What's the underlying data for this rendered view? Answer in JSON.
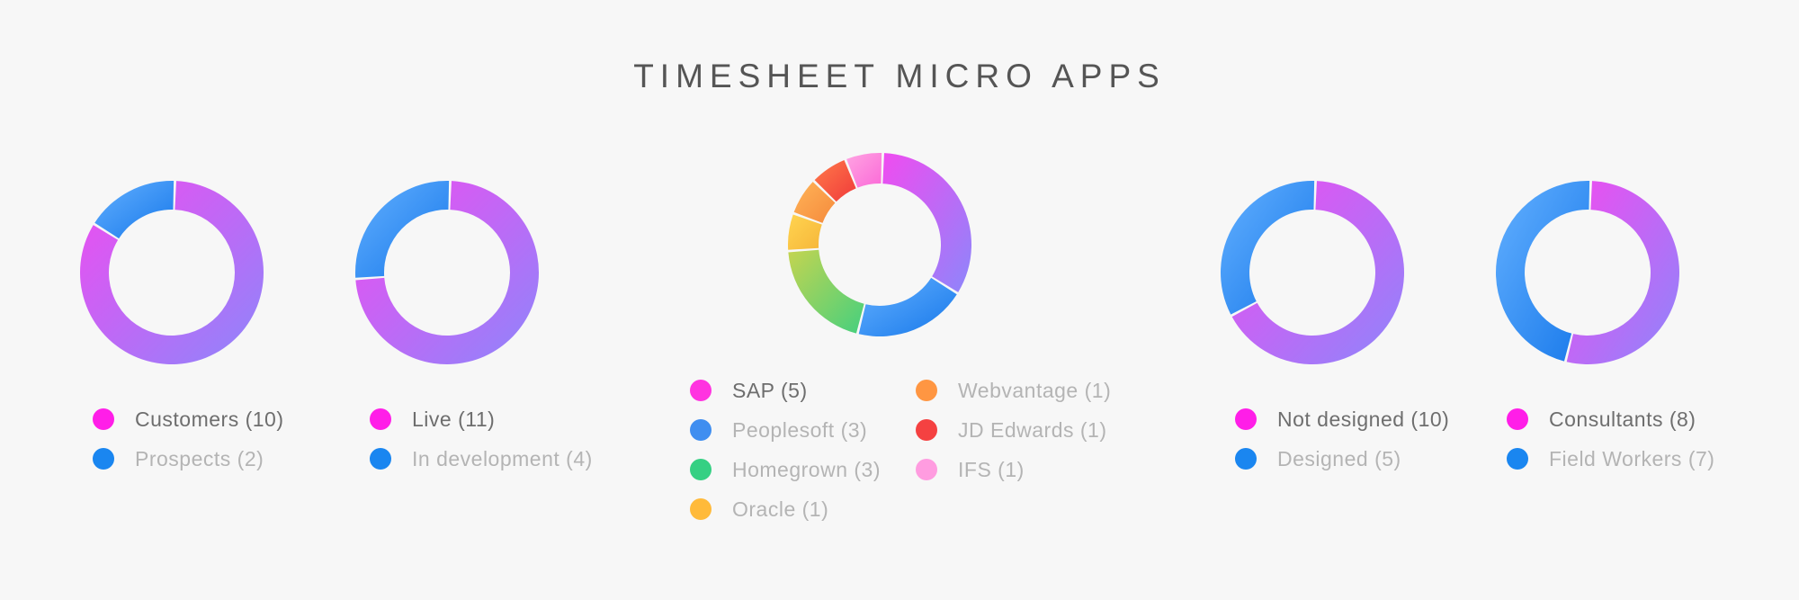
{
  "title": "TIMESHEET MICRO APPS",
  "chart_data": [
    {
      "type": "pie",
      "donut": true,
      "slices": [
        {
          "label": "Customers",
          "value": 10,
          "text": "Customers (10)",
          "dot_color": "#ff1ee8"
        },
        {
          "label": "Prospects",
          "value": 2,
          "text": "Prospects (2)",
          "dot_color": "#1a86f0"
        }
      ]
    },
    {
      "type": "pie",
      "donut": true,
      "slices": [
        {
          "label": "Live",
          "value": 11,
          "text": "Live (11)",
          "dot_color": "#ff1ee8"
        },
        {
          "label": "In development",
          "value": 4,
          "text": "In development (4)",
          "dot_color": "#1a86f0"
        }
      ]
    },
    {
      "type": "pie",
      "donut": true,
      "slices": [
        {
          "label": "SAP",
          "value": 5,
          "text": "SAP (5)",
          "dot_color": "#ff33e0"
        },
        {
          "label": "Peoplesoft",
          "value": 3,
          "text": "Peoplesoft (3)",
          "dot_color": "#3f8ef0"
        },
        {
          "label": "Homegrown",
          "value": 3,
          "text": "Homegrown (3)",
          "dot_color": "#35d083"
        },
        {
          "label": "Oracle",
          "value": 1,
          "text": "Oracle (1)",
          "dot_color": "#ffba3a"
        },
        {
          "label": "Webvantage",
          "value": 1,
          "text": "Webvantage (1)",
          "dot_color": "#ff9642"
        },
        {
          "label": "JD Edwards",
          "value": 1,
          "text": "JD Edwards (1)",
          "dot_color": "#f54141"
        },
        {
          "label": "IFS",
          "value": 1,
          "text": "IFS (1)",
          "dot_color": "#ff9ce0"
        }
      ]
    },
    {
      "type": "pie",
      "donut": true,
      "slices": [
        {
          "label": "Not designed",
          "value": 10,
          "text": "Not designed (10)",
          "dot_color": "#ff1ee8"
        },
        {
          "label": "Designed",
          "value": 5,
          "text": "Designed (5)",
          "dot_color": "#1a86f0"
        }
      ]
    },
    {
      "type": "pie",
      "donut": true,
      "slices": [
        {
          "label": "Consultants",
          "value": 8,
          "text": "Consultants (8)",
          "dot_color": "#ff1ee8"
        },
        {
          "label": "Field Workers",
          "value": 7,
          "text": "Field Workers (7)",
          "dot_color": "#1a86f0"
        }
      ]
    }
  ]
}
